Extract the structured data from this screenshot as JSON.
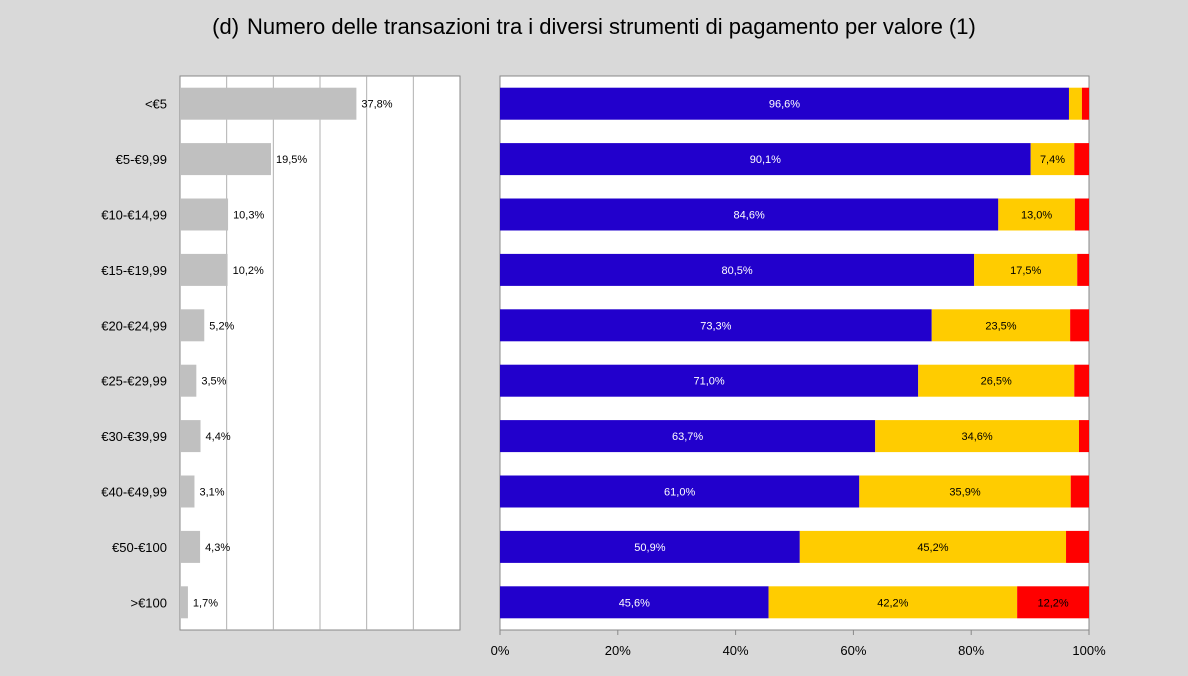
{
  "title": {
    "label": "(d)",
    "text": "Numero delle transazioni tra i diversi strumenti di pagamento per valore (1)"
  },
  "colors": {
    "background": "#d9d9d9",
    "left_bar": "#c0c0c0",
    "cash": "#2200cc",
    "cards": "#ffcc00",
    "other": "#ff0000"
  },
  "chart_data": [
    {
      "type": "bar",
      "orientation": "horizontal",
      "categories": [
        "<€5",
        "€5-€9,99",
        "€10-€14,99",
        "€15-€19,99",
        "€20-€24,99",
        "€25-€29,99",
        "€30-€39,99",
        "€40-€49,99",
        "€50-€100",
        ">€100"
      ],
      "values": [
        37.8,
        19.5,
        10.3,
        10.2,
        5.2,
        3.5,
        4.4,
        3.1,
        4.3,
        1.7
      ],
      "labels": [
        "37,8%",
        "19,5%",
        "10,3%",
        "10,2%",
        "5,2%",
        "3,5%",
        "4,4%",
        "3,1%",
        "4,3%",
        "1,7%"
      ],
      "xlim": [
        0,
        60
      ],
      "grid": true
    },
    {
      "type": "bar",
      "orientation": "horizontal",
      "stacked": true,
      "categories": [
        "<€5",
        "€5-€9,99",
        "€10-€14,99",
        "€15-€19,99",
        "€20-€24,99",
        "€25-€29,99",
        "€30-€39,99",
        "€40-€49,99",
        "€50-€100",
        ">€100"
      ],
      "series": [
        {
          "values": [
            96.6,
            90.1,
            84.6,
            80.5,
            73.3,
            71.0,
            63.7,
            61.0,
            50.9,
            45.6
          ],
          "labels": [
            "96,6%",
            "90,1%",
            "84,6%",
            "80,5%",
            "73,3%",
            "71,0%",
            "63,7%",
            "61,0%",
            "50,9%",
            "45,6%"
          ]
        },
        {
          "values": [
            2.2,
            7.4,
            13.0,
            17.5,
            23.5,
            26.5,
            34.6,
            35.9,
            45.2,
            42.2
          ],
          "labels": [
            "",
            "7,4%",
            "13,0%",
            "17,5%",
            "23,5%",
            "26,5%",
            "34,6%",
            "35,9%",
            "45,2%",
            "42,2%"
          ]
        },
        {
          "values": [
            1.2,
            2.5,
            2.4,
            2.0,
            3.2,
            2.5,
            1.7,
            3.1,
            3.9,
            12.2
          ],
          "labels": [
            "",
            "",
            "",
            "",
            "",
            "",
            "",
            "",
            "",
            "12,2%"
          ]
        }
      ],
      "xlim": [
        0,
        100
      ],
      "xticks": [
        "0%",
        "20%",
        "40%",
        "60%",
        "80%",
        "100%"
      ],
      "grid": false
    }
  ]
}
